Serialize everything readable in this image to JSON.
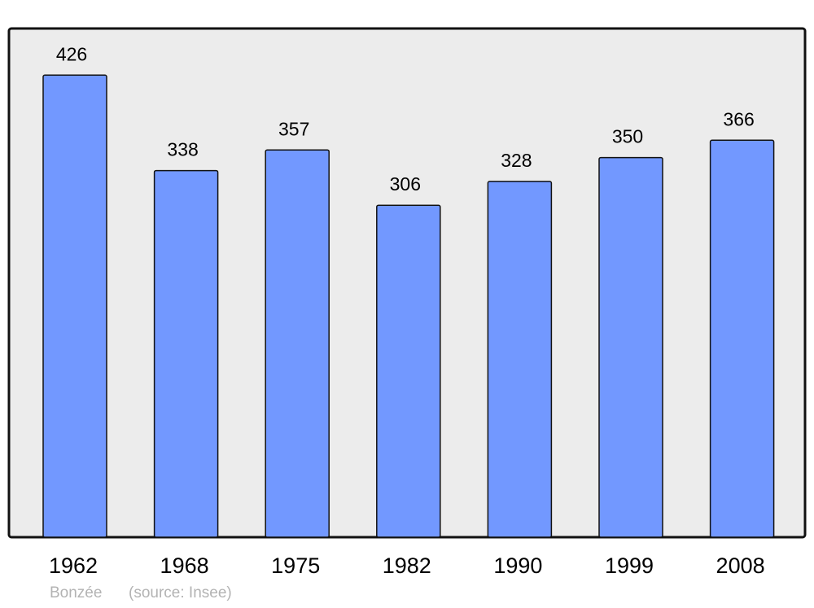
{
  "chart_data": {
    "type": "bar",
    "categories": [
      "1962",
      "1968",
      "1975",
      "1982",
      "1990",
      "1999",
      "2008"
    ],
    "values": [
      426,
      338,
      357,
      306,
      328,
      350,
      366
    ],
    "title": "",
    "xlabel": "",
    "ylabel": "",
    "ylim": [
      0,
      469
    ],
    "grid": false,
    "bar_color": "#7298ff",
    "background_color": "#ececec",
    "data_labels": true
  },
  "footer": {
    "place": "Bonzée",
    "source": "(source: Insee)"
  }
}
